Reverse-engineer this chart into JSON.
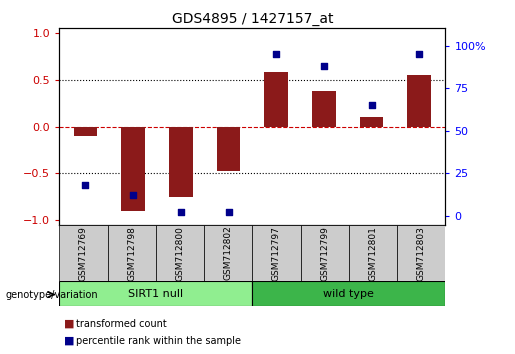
{
  "title": "GDS4895 / 1427157_at",
  "samples": [
    "GSM712769",
    "GSM712798",
    "GSM712800",
    "GSM712802",
    "GSM712797",
    "GSM712799",
    "GSM712801",
    "GSM712803"
  ],
  "transformed_count": [
    -0.1,
    -0.9,
    -0.75,
    -0.48,
    0.58,
    0.38,
    0.1,
    0.55
  ],
  "percentile_rank": [
    18,
    12,
    2,
    2,
    95,
    88,
    65,
    95
  ],
  "groups": [
    {
      "label": "SIRT1 null",
      "indices": [
        0,
        1,
        2,
        3
      ],
      "color": "#90EE90"
    },
    {
      "label": "wild type",
      "indices": [
        4,
        5,
        6,
        7
      ],
      "color": "#3CB54A"
    }
  ],
  "bar_color": "#8B1A1A",
  "dot_color": "#00008B",
  "ylim": [
    -1.05,
    1.05
  ],
  "ylim_right": [
    -5.25,
    110.25
  ],
  "yticks_left": [
    -1,
    -0.5,
    0,
    0.5,
    1
  ],
  "yticks_right": [
    0,
    25,
    50,
    75,
    100
  ],
  "ytick_labels_right": [
    "0",
    "25",
    "50",
    "75",
    "100%"
  ],
  "group_row_color": "#cccccc",
  "legend_items": [
    {
      "color": "#8B1A1A",
      "label": "transformed count"
    },
    {
      "color": "#00008B",
      "label": "percentile rank within the sample"
    }
  ],
  "bar_width": 0.5,
  "xlim": [
    -0.55,
    7.55
  ]
}
